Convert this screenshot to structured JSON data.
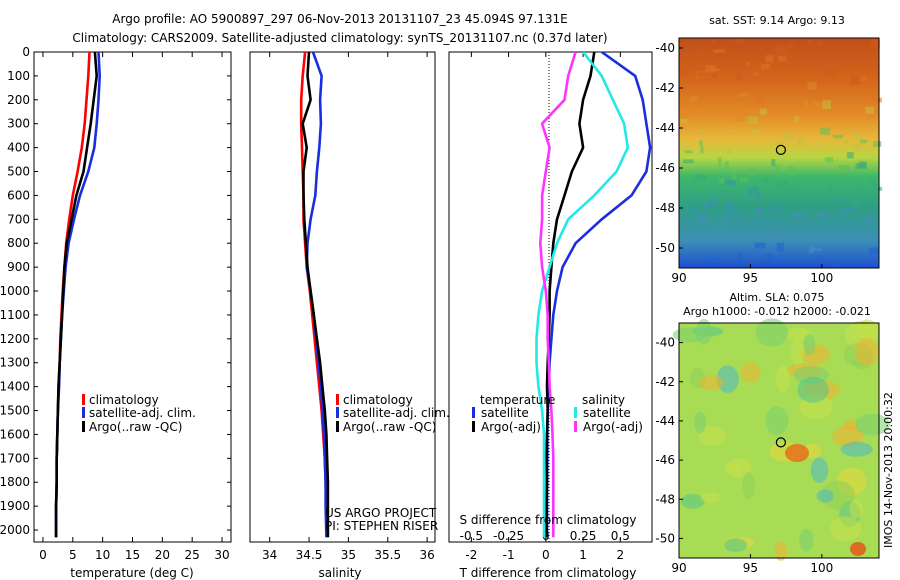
{
  "header": {
    "line1": "Argo profile: AO 5900897_297 06-Nov-2013 20131107_23 45.094S 97.131E",
    "line2": "Climatology: CARS2009. Satellite-adjusted climatology: synTS_20131107.nc (0.37d later)"
  },
  "footer": {
    "project": "US ARGO PROJECT",
    "pi": "PI: STEPHEN RISER"
  },
  "side_stamp": "IMOS 14-Nov-2013 20:00:32",
  "colors": {
    "climatology": "#ff0000",
    "satellite_adj": "#1a2ee0",
    "argo": "#000000",
    "satellite_s": "#22e8e8",
    "argo_s": "#ff33ff",
    "axis": "#000000"
  },
  "chart_data": [
    {
      "type": "line",
      "panel": "temperature",
      "xlabel": "temperature (deg C)",
      "ylabel": "",
      "xlim": [
        -1.5,
        31.5
      ],
      "ylim": [
        2050,
        0
      ],
      "xticks": [
        0,
        5,
        10,
        15,
        20,
        25,
        30
      ],
      "yticks": [
        0,
        100,
        200,
        300,
        400,
        500,
        600,
        700,
        800,
        900,
        1000,
        1100,
        1200,
        1300,
        1400,
        1500,
        1600,
        1700,
        1800,
        1900,
        2000
      ],
      "legend": [
        "climatology",
        "satellite-adj. clim.",
        "Argo(..raw -QC)"
      ],
      "series": [
        {
          "name": "climatology",
          "color": "#ff0000",
          "x": [
            7.8,
            7.6,
            7.3,
            7.0,
            6.5,
            5.8,
            5.0,
            4.4,
            3.9,
            3.6,
            3.3,
            3.1,
            2.9,
            2.8,
            2.6,
            2.5,
            2.4,
            2.3,
            2.3,
            2.2,
            2.2
          ],
          "y": [
            0,
            100,
            200,
            300,
            400,
            500,
            600,
            700,
            800,
            900,
            1000,
            1100,
            1200,
            1300,
            1400,
            1500,
            1600,
            1700,
            1800,
            1900,
            2030
          ]
        },
        {
          "name": "satellite-adj. clim.",
          "color": "#1a2ee0",
          "x": [
            9.3,
            9.5,
            9.3,
            9.0,
            8.6,
            7.6,
            6.2,
            5.2,
            4.3,
            3.8,
            3.5,
            3.2,
            3.0,
            2.8,
            2.7,
            2.5,
            2.4,
            2.3,
            2.3,
            2.2,
            2.2
          ],
          "y": [
            0,
            100,
            200,
            300,
            400,
            500,
            600,
            700,
            800,
            900,
            1000,
            1100,
            1200,
            1300,
            1400,
            1500,
            1600,
            1700,
            1800,
            1900,
            2030
          ]
        },
        {
          "name": "Argo(..raw -QC)",
          "color": "#000000",
          "x": [
            8.7,
            9.0,
            8.5,
            8.0,
            7.4,
            6.8,
            5.6,
            4.8,
            4.0,
            3.6,
            3.4,
            3.2,
            3.0,
            2.8,
            2.6,
            2.5,
            2.4,
            2.3,
            2.3,
            2.2,
            2.2
          ],
          "y": [
            0,
            100,
            200,
            300,
            400,
            500,
            600,
            700,
            800,
            900,
            1000,
            1100,
            1200,
            1300,
            1400,
            1500,
            1600,
            1700,
            1800,
            1900,
            2030
          ]
        }
      ]
    },
    {
      "type": "line",
      "panel": "salinity",
      "xlabel": "salinity",
      "ylabel": "",
      "xlim": [
        33.75,
        36.1
      ],
      "ylim": [
        2050,
        0
      ],
      "xticks": [
        34,
        34.5,
        35,
        35.5,
        36
      ],
      "legend": [
        "climatology",
        "satellite-adj. clim.",
        "Argo(..raw -QC)"
      ],
      "series": [
        {
          "name": "climatology",
          "color": "#ff0000",
          "x": [
            34.45,
            34.42,
            34.4,
            34.4,
            34.41,
            34.42,
            34.43,
            34.43,
            34.45,
            34.47,
            34.51,
            34.54,
            34.57,
            34.6,
            34.63,
            34.66,
            34.68,
            34.7,
            34.71,
            34.72,
            34.72
          ],
          "y": [
            0,
            100,
            200,
            300,
            400,
            500,
            600,
            700,
            800,
            900,
            1000,
            1100,
            1200,
            1300,
            1400,
            1500,
            1600,
            1700,
            1800,
            1900,
            2030
          ]
        },
        {
          "name": "satellite-adj. clim.",
          "color": "#1a2ee0",
          "x": [
            34.55,
            34.66,
            34.64,
            34.65,
            34.63,
            34.6,
            34.58,
            34.52,
            34.48,
            34.47,
            34.52,
            34.56,
            34.59,
            34.62,
            34.65,
            34.67,
            34.69,
            34.7,
            34.71,
            34.71,
            34.72
          ],
          "y": [
            0,
            100,
            200,
            300,
            400,
            500,
            600,
            700,
            800,
            900,
            1000,
            1100,
            1200,
            1300,
            1400,
            1500,
            1600,
            1700,
            1800,
            1900,
            2030
          ]
        },
        {
          "name": "Argo(..raw -QC)",
          "color": "#000000",
          "x": [
            34.5,
            34.48,
            34.52,
            34.42,
            34.47,
            34.43,
            34.43,
            34.44,
            34.46,
            34.48,
            34.52,
            34.56,
            34.6,
            34.64,
            34.67,
            34.7,
            34.72,
            34.73,
            34.74,
            34.74,
            34.74
          ],
          "y": [
            0,
            100,
            200,
            300,
            400,
            500,
            600,
            700,
            800,
            900,
            1000,
            1100,
            1200,
            1300,
            1400,
            1500,
            1600,
            1700,
            1800,
            1900,
            2030
          ]
        }
      ]
    },
    {
      "type": "line",
      "panel": "differences",
      "xlabel": "T difference from climatology",
      "xlabel_top": "S difference from climatology",
      "xlim": [
        -2.6,
        2.85
      ],
      "ylim": [
        2050,
        0
      ],
      "xticks": [
        -2,
        -1,
        0,
        1,
        2
      ],
      "xticks_s": [
        "-0.5",
        "-0.25",
        "0",
        "0.25",
        "0.5"
      ],
      "legend_titles": [
        "temperature",
        "salinity"
      ],
      "legend": [
        "satellite",
        "Argo(-adj)",
        "satellite",
        "Argo(-adj)"
      ],
      "series": [
        {
          "name": "satellite",
          "group": "temperature",
          "color": "#1a2ee0",
          "x": [
            1.5,
            2.4,
            2.6,
            2.7,
            2.8,
            2.7,
            2.3,
            1.5,
            0.8,
            0.45,
            0.3,
            0.2,
            0.15,
            0.1,
            0.08,
            0.05,
            0.04,
            0.04,
            0.03,
            0.03,
            0.03
          ],
          "y": [
            0,
            100,
            200,
            300,
            400,
            500,
            600,
            700,
            800,
            900,
            1000,
            1100,
            1200,
            1300,
            1400,
            1500,
            1600,
            1700,
            1800,
            1900,
            2030
          ]
        },
        {
          "name": "Argo(-adj)",
          "group": "temperature",
          "color": "#000000",
          "x": [
            1.3,
            1.2,
            1.0,
            0.9,
            1.0,
            0.7,
            0.5,
            0.3,
            0.2,
            0.15,
            0.1,
            0.1,
            0.08,
            0.05,
            0.03,
            0.05,
            0.03,
            0.02,
            0.03,
            0.02,
            0.02
          ],
          "y": [
            0,
            100,
            200,
            300,
            400,
            500,
            600,
            700,
            800,
            900,
            1000,
            1100,
            1200,
            1300,
            1400,
            1500,
            1600,
            1700,
            1800,
            1900,
            2030
          ]
        },
        {
          "name": "satellite",
          "group": "salinity",
          "color": "#22e8e8",
          "x": [
            1.0,
            1.5,
            1.8,
            2.1,
            2.2,
            1.9,
            1.3,
            0.6,
            0.3,
            0.1,
            -0.1,
            -0.2,
            -0.25,
            -0.25,
            -0.2,
            -0.1,
            -0.05,
            -0.05,
            -0.05,
            -0.05,
            -0.05
          ],
          "y": [
            0,
            100,
            200,
            300,
            400,
            500,
            600,
            700,
            800,
            900,
            1000,
            1100,
            1200,
            1300,
            1400,
            1500,
            1600,
            1700,
            1800,
            1900,
            2030
          ]
        },
        {
          "name": "Argo(-adj)",
          "group": "salinity",
          "color": "#ff33ff",
          "x": [
            0.8,
            0.6,
            0.5,
            -0.1,
            0.1,
            0.0,
            -0.1,
            -0.1,
            -0.15,
            -0.1,
            0.0,
            0.05,
            0.05,
            0.08,
            0.1,
            0.15,
            0.18,
            0.2,
            0.2,
            0.2,
            0.2
          ],
          "y": [
            0,
            100,
            200,
            300,
            400,
            500,
            600,
            700,
            800,
            900,
            1000,
            1100,
            1200,
            1300,
            1400,
            1500,
            1600,
            1700,
            1800,
            1900,
            2030
          ]
        }
      ]
    },
    {
      "type": "heatmap",
      "panel": "sst-map",
      "title": "sat. SST: 9.14  Argo: 9.13",
      "xlim": [
        90,
        104
      ],
      "ylim": [
        -51,
        -39.5
      ],
      "xticks": [
        90,
        95,
        100
      ],
      "yticks": [
        -40,
        -42,
        -44,
        -46,
        -48,
        -50
      ],
      "marker": {
        "lon": 97.131,
        "lat": -45.094
      }
    },
    {
      "type": "heatmap",
      "panel": "sla-map",
      "title": "Altim. SLA: 0.075",
      "subtitle": "Argo h1000: -0.012 h2000: -0.021",
      "xlim": [
        90,
        104
      ],
      "ylim": [
        -51,
        -39
      ],
      "xticks": [
        90,
        95,
        100
      ],
      "yticks": [
        -40,
        -42,
        -44,
        -46,
        -48,
        -50
      ],
      "marker": {
        "lon": 97.131,
        "lat": -45.094
      }
    }
  ]
}
